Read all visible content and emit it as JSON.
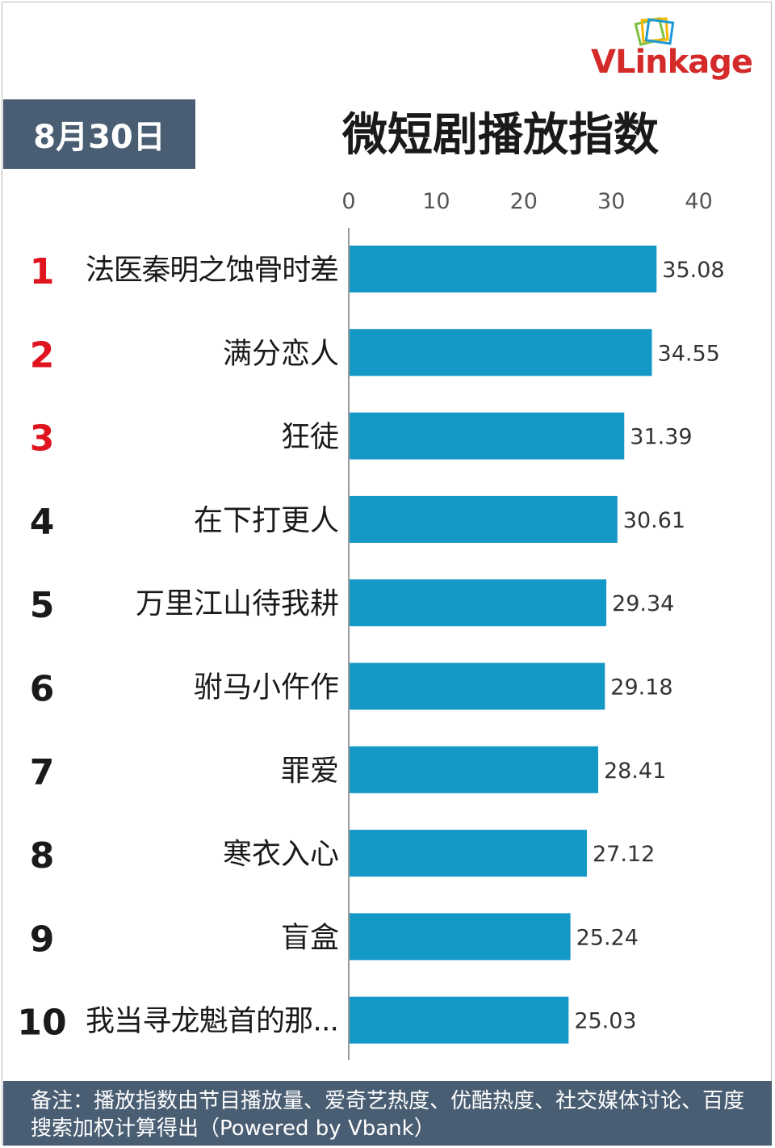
{
  "date_label": "8月30日",
  "logo": {
    "part1": "VLink",
    "part2": "age"
  },
  "chart_data": {
    "type": "bar",
    "title": "微短剧播放指数",
    "orientation": "horizontal",
    "xlim": [
      0,
      40
    ],
    "x_ticks": [
      "0",
      "10",
      "20",
      "30",
      "40"
    ],
    "ranks": [
      "1",
      "2",
      "3",
      "4",
      "5",
      "6",
      "7",
      "8",
      "9",
      "10"
    ],
    "categories": [
      "法医秦明之蚀骨时差",
      "满分恋人",
      "狂徒",
      "在下打更人",
      "万里江山待我耕",
      "驸马小仵作",
      "罪爱",
      "寒衣入心",
      "盲盒",
      "我当寻龙魁首的那..."
    ],
    "values": [
      35.08,
      34.55,
      31.39,
      30.61,
      29.34,
      29.18,
      28.41,
      27.12,
      25.24,
      25.03
    ],
    "value_labels": [
      "35.08",
      "34.55",
      "31.39",
      "30.61",
      "29.34",
      "29.18",
      "28.41",
      "27.12",
      "25.24",
      "25.03"
    ],
    "bar_color": "#1498c6",
    "top_rank_color": "#e0141e",
    "rank_color": "#1a1a1a"
  },
  "footer": {
    "note": "备注：播放指数由节目播放量、爱奇艺热度、优酷热度、社交媒体讨论、百度搜索加权计算得出（Powered by Vbank）"
  }
}
